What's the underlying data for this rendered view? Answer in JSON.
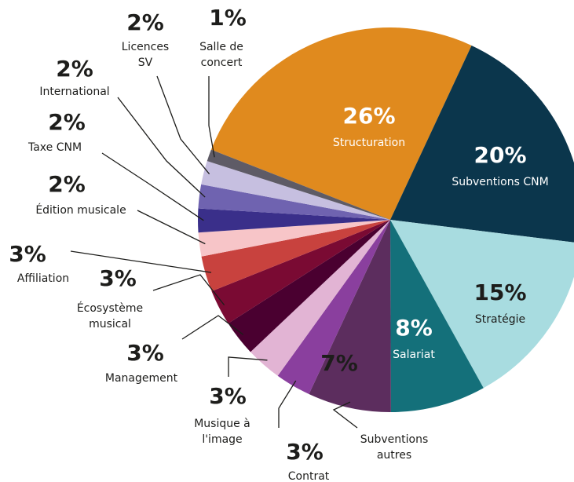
{
  "chart_data": {
    "type": "pie",
    "categories": [
      "Structuration",
      "Subventions CNM",
      "Stratégie",
      "Salariat",
      "Subventions autres",
      "Contrat",
      "Musique à l'image",
      "Management",
      "Écosystème musical",
      "Affiliation",
      "Édition musicale",
      "Taxe CNM",
      "International",
      "Licences SV",
      "Salle de concert"
    ],
    "values": [
      26,
      20,
      15,
      8,
      7,
      3,
      3,
      3,
      3,
      3,
      2,
      2,
      2,
      2,
      1
    ],
    "value_labels": [
      "26%",
      "20%",
      "15%",
      "8%",
      "7%",
      "3%",
      "3%",
      "3%",
      "3%",
      "3%",
      "2%",
      "2%",
      "2%",
      "2%",
      "1%"
    ],
    "colors": [
      "#e08a1e",
      "#0b364c",
      "#a8dce0",
      "#14707a",
      "#5c2d5e",
      "#8a3f9e",
      "#e2b4d4",
      "#4a0030",
      "#7a0a33",
      "#c8423e",
      "#f7c5c8",
      "#3a2f8a",
      "#6f63b0",
      "#c6bfe0",
      "#5e5b66"
    ]
  }
}
